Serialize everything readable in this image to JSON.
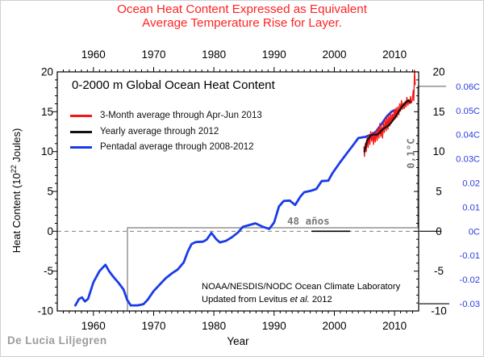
{
  "figure": {
    "title_line1": "Ocean Heat Content Expressed as Equivalent",
    "title_line2": "Average Temperature Rise for Layer.",
    "title_color": "#ff2222",
    "watermark": "De Lucia Liljegren"
  },
  "plot": {
    "inner_title": "0-2000 m Global Ocean Heat Content",
    "xlabel": "Year",
    "ylabel_pre": "Heat Content (10",
    "ylabel_sup": "22",
    "ylabel_post": " Joules)",
    "credit_line1": "NOAA/NESDIS/NODC Ocean Climate Laboratory",
    "credit2_pre": "Updated from Levitus ",
    "credit2_italic": "et al.",
    "credit2_post": " 2012"
  },
  "legend": {
    "items": [
      {
        "label": "3-Month average through Apr-Jun 2013",
        "color": "#f51616"
      },
      {
        "label": "Yearly average through 2012",
        "color": "#111111"
      },
      {
        "label": "Pentadal average through 2008-2012",
        "color": "#1b3be8"
      }
    ]
  },
  "annotations": {
    "span_label": "48 años",
    "rise_label": "0,1°C",
    "color": "#7a7a7a"
  },
  "axes": {
    "x": {
      "range": [
        1954,
        2014
      ],
      "minor_step": 1,
      "tick_years": [
        1960,
        1970,
        1980,
        1990,
        2000,
        2010
      ],
      "tick_labels": [
        "1960",
        "1970",
        "1980",
        "1990",
        "2000",
        "2010"
      ]
    },
    "y": {
      "range": [
        -10,
        20
      ],
      "minor_step": 1,
      "tick_values": [
        -10,
        -5,
        0,
        5,
        10,
        15,
        20
      ],
      "tick_labels": [
        "-10",
        "-5",
        "0",
        "5",
        "10",
        "15",
        "20"
      ]
    },
    "right_temp": {
      "color": "#2a3fe0",
      "values": [
        0.06,
        0.05,
        0.04,
        0.03,
        0.02,
        0.01,
        0,
        -0.01,
        -0.02,
        -0.03
      ],
      "labels": [
        "0.06C",
        "0.05C",
        "0.04C",
        "0.03C",
        "0.02",
        "0.01",
        "0C",
        "-0.01",
        "-0.02",
        "-0.03"
      ]
    }
  },
  "chart_data": {
    "type": "line",
    "title": "0-2000 m Global Ocean Heat Content",
    "xlabel": "Year",
    "ylabel": "Heat Content (10^22 Joules)",
    "xlim": [
      1954,
      2014
    ],
    "ylim": [
      -10,
      20
    ],
    "grid": false,
    "zero_line_dashed": true,
    "legend_position": "upper-left-inside",
    "right_axis_celsius": {
      "per_unit_px_note": "0C aligns with 0 Joules, 0.06C aligns near 18e22 J",
      "labels_range": [
        -0.03,
        0.06
      ]
    },
    "series": [
      {
        "name": "Pentadal average through 2008-2012",
        "color": "#1b3be8",
        "width": 2.8,
        "points": [
          [
            1957,
            -9.3
          ],
          [
            1957.6,
            -8.5
          ],
          [
            1958.1,
            -8.3
          ],
          [
            1958.6,
            -8.8
          ],
          [
            1959.1,
            -8.5
          ],
          [
            1960,
            -6.4
          ],
          [
            1961,
            -5.0
          ],
          [
            1962,
            -4.2
          ],
          [
            1962.6,
            -5.0
          ],
          [
            1963.3,
            -5.7
          ],
          [
            1964.2,
            -6.5
          ],
          [
            1965,
            -7.3
          ],
          [
            1965.6,
            -8.6
          ],
          [
            1966.2,
            -9.3
          ],
          [
            1967.3,
            -9.3
          ],
          [
            1968.3,
            -9.15
          ],
          [
            1969,
            -8.6
          ],
          [
            1970,
            -7.5
          ],
          [
            1971,
            -6.7
          ],
          [
            1972,
            -5.9
          ],
          [
            1973,
            -5.3
          ],
          [
            1974,
            -4.8
          ],
          [
            1975,
            -3.9
          ],
          [
            1975.7,
            -2.5
          ],
          [
            1976.3,
            -1.6
          ],
          [
            1977,
            -1.35
          ],
          [
            1978.2,
            -1.3
          ],
          [
            1978.8,
            -1.05
          ],
          [
            1979.6,
            -0.2
          ],
          [
            1980.4,
            -1.0
          ],
          [
            1981,
            -1.4
          ],
          [
            1982,
            -1.2
          ],
          [
            1983,
            -0.75
          ],
          [
            1984,
            -0.15
          ],
          [
            1984.8,
            0.55
          ],
          [
            1986,
            0.8
          ],
          [
            1986.9,
            1.0
          ],
          [
            1988,
            0.6
          ],
          [
            1989.2,
            0.3
          ],
          [
            1990,
            1.1
          ],
          [
            1990.8,
            3.1
          ],
          [
            1991.6,
            3.8
          ],
          [
            1992.6,
            3.85
          ],
          [
            1993.5,
            3.3
          ],
          [
            1994.4,
            4.4
          ],
          [
            1995,
            4.9
          ],
          [
            1996.2,
            5.1
          ],
          [
            1997,
            5.3
          ],
          [
            1997.9,
            6.3
          ],
          [
            1999,
            6.35
          ],
          [
            1999.7,
            7.3
          ],
          [
            2000.9,
            8.6
          ],
          [
            2002.3,
            10.0
          ],
          [
            2003,
            10.7
          ],
          [
            2004,
            11.7
          ],
          [
            2005.2,
            11.85
          ],
          [
            2006.3,
            12.2
          ],
          [
            2006.9,
            12.5
          ],
          [
            2007.6,
            13.2
          ],
          [
            2008.7,
            14.4
          ],
          [
            2009.5,
            15.0
          ],
          [
            2010,
            15.2
          ]
        ]
      },
      {
        "name": "3-Month average through Apr-Jun 2013",
        "color": "#f51616",
        "width": 1.4,
        "points": [
          [
            2004.9,
            10.6
          ],
          [
            2005.0,
            9.4
          ],
          [
            2005.15,
            11.0
          ],
          [
            2005.3,
            10.0
          ],
          [
            2005.45,
            11.8
          ],
          [
            2005.6,
            10.5
          ],
          [
            2005.75,
            12.0
          ],
          [
            2005.9,
            10.9
          ],
          [
            2006.05,
            12.5
          ],
          [
            2006.2,
            11.3
          ],
          [
            2006.35,
            12.4
          ],
          [
            2006.5,
            10.9
          ],
          [
            2006.65,
            12.3
          ],
          [
            2006.8,
            11.2
          ],
          [
            2006.95,
            12.6
          ],
          [
            2007.1,
            11.4
          ],
          [
            2007.25,
            12.9
          ],
          [
            2007.4,
            11.7
          ],
          [
            2007.55,
            13.5
          ],
          [
            2007.7,
            11.9
          ],
          [
            2007.85,
            13.1
          ],
          [
            2008.0,
            11.7
          ],
          [
            2008.15,
            13.6
          ],
          [
            2008.3,
            12.4
          ],
          [
            2008.45,
            14.1
          ],
          [
            2008.6,
            12.6
          ],
          [
            2008.75,
            14.3
          ],
          [
            2008.9,
            12.8
          ],
          [
            2009.05,
            14.5
          ],
          [
            2009.2,
            13.2
          ],
          [
            2009.35,
            14.8
          ],
          [
            2009.5,
            13.6
          ],
          [
            2009.65,
            14.7
          ],
          [
            2009.8,
            13.9
          ],
          [
            2009.95,
            15.3
          ],
          [
            2010.1,
            14.1
          ],
          [
            2010.25,
            15.5
          ],
          [
            2010.4,
            14.3
          ],
          [
            2010.55,
            15.6
          ],
          [
            2010.7,
            14.6
          ],
          [
            2010.85,
            16.0
          ],
          [
            2011.0,
            15.1
          ],
          [
            2011.15,
            16.4
          ],
          [
            2011.3,
            15.3
          ],
          [
            2011.45,
            16.1
          ],
          [
            2011.6,
            15.4
          ],
          [
            2011.75,
            16.3
          ],
          [
            2011.9,
            15.6
          ],
          [
            2012.05,
            16.8
          ],
          [
            2012.2,
            15.8
          ],
          [
            2012.35,
            16.4
          ],
          [
            2012.5,
            16.0
          ],
          [
            2012.65,
            16.9
          ],
          [
            2012.8,
            16.1
          ],
          [
            2012.95,
            16.5
          ],
          [
            2013.1,
            17.7
          ],
          [
            2013.2,
            16.4
          ],
          [
            2013.32,
            20.2
          ],
          [
            2013.42,
            18.4
          ]
        ]
      },
      {
        "name": "Yearly average through 2012",
        "color": "#111111",
        "width": 2.2,
        "points": [
          [
            2005,
            10.0
          ],
          [
            2005.4,
            11.3
          ],
          [
            2006,
            12.0
          ],
          [
            2006.5,
            12.15
          ],
          [
            2007,
            12.1
          ],
          [
            2007.5,
            12.35
          ],
          [
            2008,
            12.8
          ],
          [
            2008.7,
            13.1
          ],
          [
            2009.3,
            13.5
          ],
          [
            2010,
            14.2
          ],
          [
            2010.6,
            14.9
          ],
          [
            2011.3,
            15.7
          ],
          [
            2011.8,
            16.1
          ],
          [
            2012.3,
            16.45
          ],
          [
            2012.6,
            16.2
          ]
        ]
      }
    ]
  }
}
